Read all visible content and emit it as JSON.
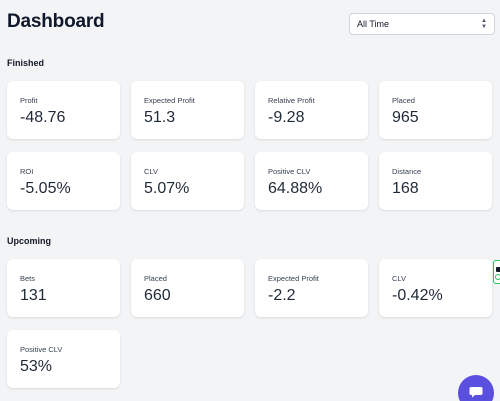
{
  "header": {
    "title": "Dashboard",
    "filter": {
      "selected": "All Time"
    }
  },
  "finished": {
    "title": "Finished",
    "cards": [
      {
        "label": "Profit",
        "value": "-48.76"
      },
      {
        "label": "Expected Profit",
        "value": "51.3"
      },
      {
        "label": "Relative Profit",
        "value": "-9.28"
      },
      {
        "label": "Placed",
        "value": "965"
      },
      {
        "label": "ROI",
        "value": "-5.05%"
      },
      {
        "label": "CLV",
        "value": "5.07%"
      },
      {
        "label": "Positive CLV",
        "value": "64.88%"
      },
      {
        "label": "Distance",
        "value": "168"
      }
    ]
  },
  "upcoming": {
    "title": "Upcoming",
    "cards": [
      {
        "label": "Bets",
        "value": "131"
      },
      {
        "label": "Placed",
        "value": "660"
      },
      {
        "label": "Expected Profit",
        "value": "-2.2"
      },
      {
        "label": "CLV",
        "value": "-0.42%"
      },
      {
        "label": "Positive CLV",
        "value": "53%"
      }
    ]
  },
  "icons": {
    "filter_chevron": "chevron-up-down-icon",
    "chat": "chat-icon"
  },
  "colors": {
    "background": "#f3f4f6",
    "card": "#ffffff",
    "chat_accent": "#5b4fe0",
    "widget_accent": "#22c55e"
  }
}
